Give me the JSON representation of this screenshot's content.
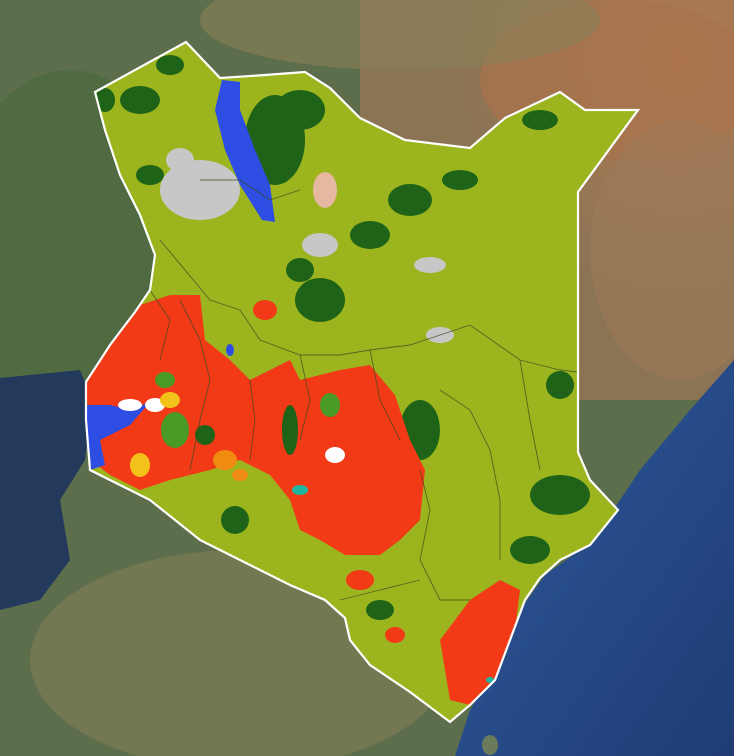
{
  "map": {
    "region": "Kenya",
    "basemap": "satellite-imagery",
    "overlay": "land-cover-classification"
  },
  "legend_colors": {
    "cropland": "#f23a16",
    "grassland_shrubland": "#9cb51f",
    "forest": "#1e6317",
    "water": "#2d4de3",
    "bare_sparse": "#c7c7c7",
    "wetland": "#1fb6a0",
    "settlement": "#ffffff",
    "other_crops": "#f3c21a",
    "mixed": "#f08a10",
    "boundary": "#ffffff",
    "ocean": "#2a4c8c"
  }
}
